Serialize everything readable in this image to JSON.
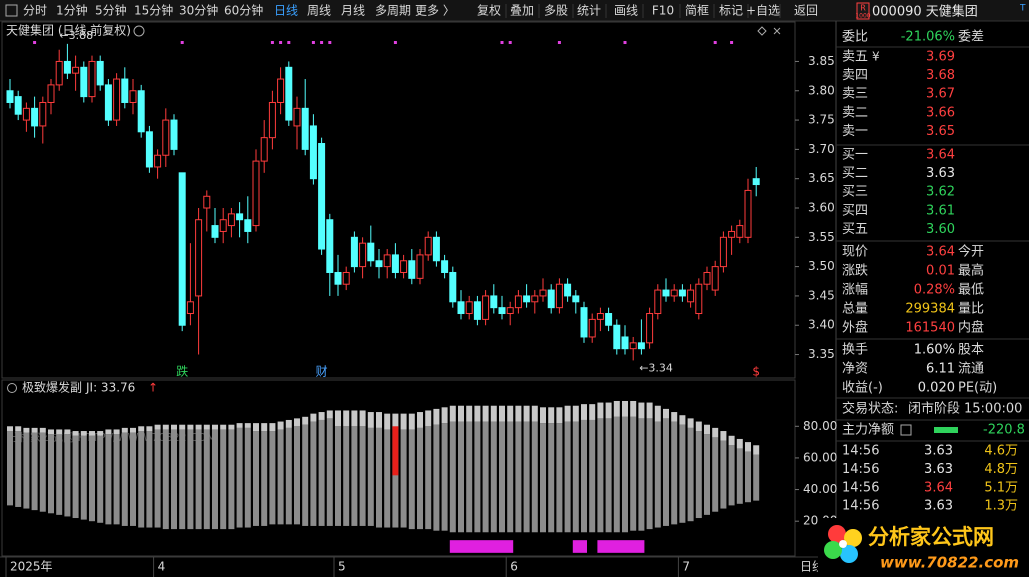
{
  "toolbar": {
    "periods": [
      "分时",
      "1分钟",
      "5分钟",
      "15分钟",
      "30分钟",
      "60分钟",
      "日线",
      "周线",
      "月线",
      "多周期",
      "更多 〉"
    ],
    "active_period_index": 6,
    "tools": [
      "复权",
      "叠加",
      "多股",
      "统计",
      "画线",
      "F10",
      "简框",
      "标记",
      "+自选",
      "返回"
    ]
  },
  "stock_header": {
    "badge_top": "R",
    "badge_bottom": "1000",
    "code_name": "000090 天健集团",
    "tag": "T"
  },
  "chart_data": [
    {
      "type": "candlestick",
      "title": "天健集团 (日线,前复权)",
      "up_color": "#ff3c3c",
      "down_color": "#54ffff",
      "categories": [
        "2025年",
        null,
        null,
        null,
        null,
        null,
        null,
        null,
        null,
        null,
        null,
        null,
        null,
        null,
        null,
        null,
        null,
        null,
        "4",
        null,
        null,
        null,
        null,
        null,
        null,
        null,
        null,
        null,
        null,
        null,
        null,
        null,
        null,
        null,
        null,
        null,
        null,
        null,
        null,
        null,
        "5",
        null,
        null,
        null,
        null,
        null,
        null,
        null,
        null,
        null,
        null,
        null,
        null,
        null,
        null,
        null,
        null,
        null,
        null,
        null,
        null,
        "6",
        null,
        null,
        null,
        null,
        null,
        null,
        null,
        null,
        null,
        null,
        null,
        null,
        null,
        null,
        null,
        null,
        null,
        null,
        null,
        null,
        "7",
        null,
        null,
        null,
        null,
        null,
        null,
        null,
        null,
        null
      ],
      "ohlc": [
        [
          3.8,
          3.82,
          3.77,
          3.78
        ],
        [
          3.79,
          3.8,
          3.75,
          3.76
        ],
        [
          3.75,
          3.78,
          3.73,
          3.77
        ],
        [
          3.77,
          3.79,
          3.72,
          3.74
        ],
        [
          3.74,
          3.79,
          3.71,
          3.78
        ],
        [
          3.78,
          3.82,
          3.76,
          3.81
        ],
        [
          3.81,
          3.87,
          3.8,
          3.85
        ],
        [
          3.85,
          3.88,
          3.82,
          3.83
        ],
        [
          3.83,
          3.86,
          3.8,
          3.84
        ],
        [
          3.84,
          3.85,
          3.78,
          3.79
        ],
        [
          3.79,
          3.86,
          3.78,
          3.85
        ],
        [
          3.85,
          3.86,
          3.8,
          3.81
        ],
        [
          3.81,
          3.82,
          3.74,
          3.75
        ],
        [
          3.75,
          3.83,
          3.74,
          3.82
        ],
        [
          3.82,
          3.84,
          3.77,
          3.78
        ],
        [
          3.78,
          3.82,
          3.76,
          3.8
        ],
        [
          3.8,
          3.81,
          3.72,
          3.73
        ],
        [
          3.73,
          3.74,
          3.66,
          3.67
        ],
        [
          3.67,
          3.7,
          3.65,
          3.69
        ],
        [
          3.69,
          3.77,
          3.67,
          3.75
        ],
        [
          3.75,
          3.76,
          3.69,
          3.7
        ],
        [
          3.66,
          3.66,
          3.39,
          3.4
        ],
        [
          3.42,
          3.54,
          3.4,
          3.44
        ],
        [
          3.45,
          3.6,
          3.35,
          3.58
        ],
        [
          3.6,
          3.63,
          3.56,
          3.62
        ],
        [
          3.57,
          3.6,
          3.54,
          3.55
        ],
        [
          3.56,
          3.6,
          3.54,
          3.58
        ],
        [
          3.57,
          3.6,
          3.55,
          3.59
        ],
        [
          3.59,
          3.61,
          3.55,
          3.58
        ],
        [
          3.58,
          3.62,
          3.54,
          3.56
        ],
        [
          3.57,
          3.7,
          3.56,
          3.68
        ],
        [
          3.68,
          3.75,
          3.66,
          3.72
        ],
        [
          3.72,
          3.8,
          3.7,
          3.78
        ],
        [
          3.78,
          3.84,
          3.76,
          3.82
        ],
        [
          3.84,
          3.85,
          3.74,
          3.75
        ],
        [
          3.74,
          3.79,
          3.7,
          3.77
        ],
        [
          3.77,
          3.82,
          3.69,
          3.7
        ],
        [
          3.74,
          3.76,
          3.64,
          3.65
        ],
        [
          3.71,
          3.72,
          3.52,
          3.53
        ],
        [
          3.58,
          3.59,
          3.45,
          3.49
        ],
        [
          3.49,
          3.52,
          3.45,
          3.47
        ],
        [
          3.47,
          3.5,
          3.46,
          3.49
        ],
        [
          3.55,
          3.56,
          3.49,
          3.5
        ],
        [
          3.5,
          3.55,
          3.48,
          3.54
        ],
        [
          3.54,
          3.57,
          3.5,
          3.51
        ],
        [
          3.51,
          3.53,
          3.48,
          3.5
        ],
        [
          3.5,
          3.53,
          3.48,
          3.52
        ],
        [
          3.52,
          3.54,
          3.48,
          3.49
        ],
        [
          3.49,
          3.52,
          3.48,
          3.51
        ],
        [
          3.51,
          3.53,
          3.47,
          3.48
        ],
        [
          3.48,
          3.53,
          3.47,
          3.52
        ],
        [
          3.52,
          3.56,
          3.51,
          3.55
        ],
        [
          3.55,
          3.56,
          3.5,
          3.51
        ],
        [
          3.51,
          3.52,
          3.48,
          3.49
        ],
        [
          3.49,
          3.5,
          3.43,
          3.44
        ],
        [
          3.44,
          3.46,
          3.41,
          3.42
        ],
        [
          3.42,
          3.45,
          3.41,
          3.44
        ],
        [
          3.44,
          3.45,
          3.4,
          3.41
        ],
        [
          3.41,
          3.46,
          3.4,
          3.45
        ],
        [
          3.45,
          3.47,
          3.42,
          3.43
        ],
        [
          3.43,
          3.45,
          3.41,
          3.42
        ],
        [
          3.42,
          3.44,
          3.4,
          3.43
        ],
        [
          3.43,
          3.46,
          3.42,
          3.45
        ],
        [
          3.45,
          3.47,
          3.43,
          3.44
        ],
        [
          3.44,
          3.46,
          3.42,
          3.45
        ],
        [
          3.45,
          3.48,
          3.44,
          3.46
        ],
        [
          3.46,
          3.47,
          3.42,
          3.43
        ],
        [
          3.43,
          3.48,
          3.42,
          3.47
        ],
        [
          3.47,
          3.48,
          3.44,
          3.45
        ],
        [
          3.45,
          3.46,
          3.42,
          3.44
        ],
        [
          3.43,
          3.44,
          3.37,
          3.38
        ],
        [
          3.38,
          3.42,
          3.37,
          3.41
        ],
        [
          3.41,
          3.43,
          3.39,
          3.42
        ],
        [
          3.42,
          3.43,
          3.39,
          3.4
        ],
        [
          3.4,
          3.41,
          3.35,
          3.36
        ],
        [
          3.38,
          3.4,
          3.35,
          3.36
        ],
        [
          3.36,
          3.38,
          3.34,
          3.37
        ],
        [
          3.37,
          3.41,
          3.35,
          3.36
        ],
        [
          3.37,
          3.43,
          3.36,
          3.42
        ],
        [
          3.42,
          3.47,
          3.41,
          3.46
        ],
        [
          3.46,
          3.48,
          3.44,
          3.45
        ],
        [
          3.45,
          3.47,
          3.44,
          3.46
        ],
        [
          3.46,
          3.47,
          3.44,
          3.45
        ],
        [
          3.44,
          3.47,
          3.43,
          3.46
        ],
        [
          3.42,
          3.48,
          3.41,
          3.47
        ],
        [
          3.47,
          3.5,
          3.46,
          3.49
        ],
        [
          3.46,
          3.51,
          3.45,
          3.5
        ],
        [
          3.5,
          3.56,
          3.49,
          3.55
        ],
        [
          3.55,
          3.57,
          3.52,
          3.56
        ],
        [
          3.55,
          3.58,
          3.54,
          3.57
        ],
        [
          3.55,
          3.65,
          3.54,
          3.63
        ],
        [
          3.65,
          3.67,
          3.62,
          3.64
        ]
      ],
      "ylim": [
        3.31,
        3.89
      ],
      "yticks": [
        {
          "value": 3.35,
          "label": "3.35"
        },
        {
          "value": 3.4,
          "label": "3.40"
        },
        {
          "value": 3.45,
          "label": "3.45"
        },
        {
          "value": 3.5,
          "label": "3.50"
        },
        {
          "value": 3.55,
          "label": "3.55"
        },
        {
          "value": 3.6,
          "label": "3.60"
        },
        {
          "value": 3.65,
          "label": "3.65"
        },
        {
          "value": 3.7,
          "label": "3.70"
        },
        {
          "value": 3.75,
          "label": "3.75"
        },
        {
          "value": 3.8,
          "label": "3.80"
        },
        {
          "value": 3.85,
          "label": "3.85"
        }
      ],
      "annotations": [
        {
          "index": 7,
          "text": "←3.88"
        },
        {
          "index": 76,
          "text": "←3.34"
        }
      ],
      "markers": [
        {
          "index": 21,
          "text": "跌",
          "color": "#2fd35c"
        },
        {
          "index": 38,
          "text": "财",
          "color": "#4aa3ff"
        },
        {
          "index": 91,
          "text": "$",
          "color": "#ff3c3c"
        }
      ],
      "dot_indices": [
        3,
        21,
        32,
        33,
        34,
        37,
        38,
        39,
        47,
        60,
        61,
        67,
        75,
        86,
        88
      ],
      "dot_color": "#e040e0"
    },
    {
      "type": "floating-bar",
      "title": "极致爆发副",
      "indicator": "JI: 33.76",
      "arrow": "↑",
      "low_color": "#8c8c8c",
      "cap_color": "#c8c8c8",
      "low": [
        30,
        29,
        28,
        27,
        26,
        25,
        24,
        23,
        22,
        21,
        20,
        19,
        18,
        18,
        17,
        17,
        16,
        16,
        16,
        15,
        15,
        15,
        15,
        15,
        15,
        15,
        15,
        15,
        16,
        16,
        17,
        17,
        18,
        18,
        18,
        18,
        17,
        17,
        17,
        17,
        17,
        17,
        17,
        17,
        17,
        16,
        16,
        16,
        16,
        15,
        15,
        15,
        14,
        14,
        13,
        13,
        13,
        13,
        13,
        13,
        13,
        13,
        13,
        13,
        13,
        13,
        13,
        13,
        13,
        13,
        13,
        13,
        13,
        13,
        13,
        13,
        14,
        14,
        15,
        16,
        17,
        18,
        19,
        20,
        22,
        24,
        26,
        28,
        30,
        31,
        32,
        33
      ],
      "mid": [
        77,
        77,
        76,
        76,
        76,
        75,
        75,
        75,
        74,
        74,
        74,
        74,
        75,
        75,
        76,
        76,
        77,
        77,
        78,
        78,
        78,
        78,
        78,
        78,
        78,
        78,
        78,
        78,
        79,
        79,
        77,
        77,
        77,
        78,
        79,
        80,
        81,
        83,
        84,
        85,
        80,
        80,
        80,
        80,
        79,
        79,
        78,
        78,
        78,
        78,
        79,
        80,
        81,
        82,
        83,
        83,
        83,
        83,
        83,
        83,
        83,
        83,
        83,
        83,
        83,
        82,
        82,
        82,
        83,
        83,
        84,
        84,
        85,
        85,
        86,
        86,
        86,
        85,
        85,
        83,
        85,
        83,
        81,
        79,
        77,
        75,
        73,
        71,
        68,
        66,
        64,
        62
      ],
      "high": [
        80,
        80,
        79,
        79,
        79,
        78,
        78,
        78,
        77,
        77,
        77,
        77,
        78,
        78,
        79,
        79,
        80,
        80,
        81,
        81,
        81,
        81,
        81,
        81,
        81,
        81,
        81,
        81,
        82,
        82,
        82,
        82,
        82,
        83,
        84,
        85,
        86,
        88,
        89,
        90,
        90,
        90,
        90,
        90,
        89,
        89,
        88,
        88,
        88,
        88,
        89,
        90,
        91,
        92,
        93,
        93,
        93,
        93,
        93,
        93,
        93,
        93,
        93,
        93,
        93,
        92,
        92,
        92,
        93,
        93,
        94,
        94,
        95,
        95,
        96,
        96,
        96,
        95,
        95,
        93,
        91,
        89,
        87,
        85,
        83,
        81,
        79,
        77,
        74,
        72,
        70,
        68
      ],
      "highlight": {
        "index": 47,
        "low": 49,
        "high": 80,
        "color": "#e8201b"
      },
      "signals": {
        "ranges": [
          [
            54,
            61
          ],
          [
            69,
            70
          ],
          [
            72,
            77
          ]
        ],
        "low": 0,
        "high": 8,
        "color": "#e020e0"
      },
      "ylim": [
        -2,
        108
      ],
      "yticks": [
        {
          "value": 20,
          "label": "20.00"
        },
        {
          "value": 40,
          "label": "40.00"
        },
        {
          "value": 60,
          "label": "60.00"
        },
        {
          "value": 80,
          "label": "80.00"
        }
      ]
    }
  ],
  "watermark": "分析家公式网 HTTP://WWW.70822.COM",
  "period_label": "日线",
  "quote_panel": {
    "ratio": {
      "label": "委比",
      "value": "-21.06%",
      "label2": "委差",
      "color": "#2fd35c"
    },
    "asks": [
      {
        "label": "卖五",
        "icon": "¥",
        "price": "3.69",
        "color": "#ff4040"
      },
      {
        "label": "卖四",
        "price": "3.68",
        "color": "#ff4040"
      },
      {
        "label": "卖三",
        "price": "3.67",
        "color": "#ff4040"
      },
      {
        "label": "卖二",
        "price": "3.66",
        "color": "#ff4040"
      },
      {
        "label": "卖一",
        "price": "3.65",
        "color": "#ff4040"
      }
    ],
    "bids": [
      {
        "label": "买一",
        "price": "3.64",
        "color": "#ff4040"
      },
      {
        "label": "买二",
        "price": "3.63",
        "color": "#e6e6e6"
      },
      {
        "label": "买三",
        "price": "3.62",
        "color": "#2fd35c"
      },
      {
        "label": "买四",
        "price": "3.61",
        "color": "#2fd35c"
      },
      {
        "label": "买五",
        "price": "3.60",
        "color": "#2fd35c"
      }
    ],
    "stats": [
      {
        "label": "现价",
        "value": "3.64",
        "label2": "今开",
        "color": "#ff4040"
      },
      {
        "label": "涨跌",
        "value": "0.01",
        "label2": "最高",
        "color": "#ff4040"
      },
      {
        "label": "涨幅",
        "value": "0.28%",
        "label2": "最低",
        "color": "#ff4040"
      },
      {
        "label": "总量",
        "value": "299384",
        "label2": "量比",
        "color": "#f0c419"
      },
      {
        "label": "外盘",
        "value": "161540",
        "label2": "内盘",
        "color": "#ff4040"
      }
    ],
    "stats2": [
      {
        "label": "换手",
        "value": "1.60%",
        "label2": "股本",
        "color": "#e6e6e6"
      },
      {
        "label": "净资",
        "value": "6.11",
        "label2": "流通",
        "color": "#e6e6e6"
      },
      {
        "label": "收益(-)",
        "value": "0.020",
        "label2": "PE(动)",
        "color": "#e6e6e6"
      }
    ],
    "status": {
      "label": "交易状态:",
      "value": "闭市阶段",
      "time": "15:00:00"
    },
    "main_flow": {
      "label": "主力净额",
      "value": "-220.8",
      "color": "#2fd35c"
    },
    "trades": [
      {
        "time": "14:56",
        "price": "3.63",
        "volume": "4.6万",
        "price_color": "#e6e6e6"
      },
      {
        "time": "14:56",
        "price": "3.63",
        "volume": "4.8万",
        "price_color": "#e6e6e6"
      },
      {
        "time": "14:56",
        "price": "3.64",
        "volume": "5.1万",
        "price_color": "#ff4040"
      },
      {
        "time": "14:56",
        "price": "3.63",
        "volume": "1.3万",
        "price_color": "#e6e6e6"
      }
    ]
  },
  "logo": {
    "name": "分析家公式网",
    "url": "www.70822.com"
  }
}
